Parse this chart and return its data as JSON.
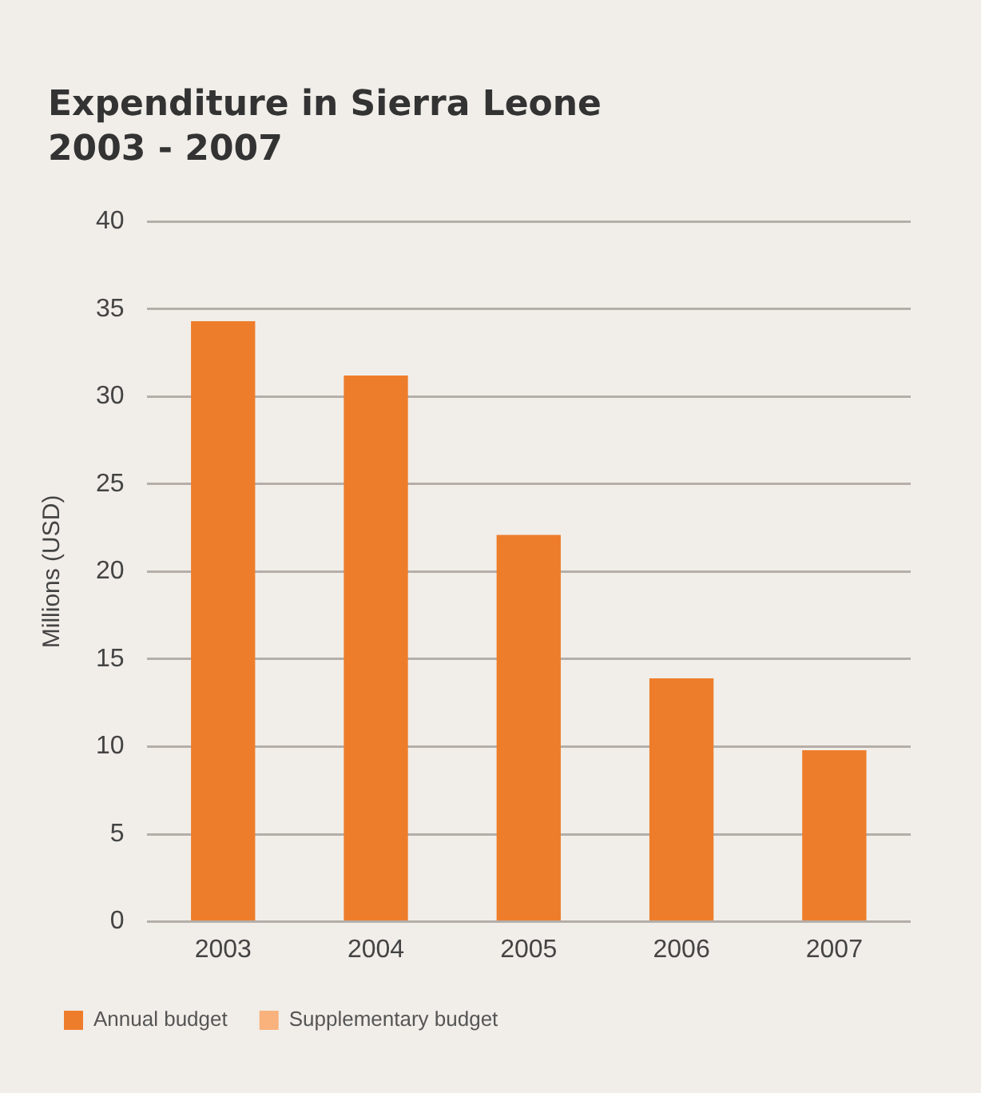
{
  "chart_data": {
    "type": "bar",
    "title": "Expenditure in Sierra Leone\n2003 - 2007",
    "ylabel": "Millions (USD)",
    "categories": [
      "2003",
      "2004",
      "2005",
      "2006",
      "2007"
    ],
    "stacked": true,
    "series": [
      {
        "name": "Annual budget",
        "color": "#ee7d2b",
        "values": [
          34.3,
          31.2,
          22.1,
          13.9,
          9.8
        ]
      },
      {
        "name": "Supplementary budget",
        "color": "#f9b27c",
        "values": [
          null,
          null,
          null,
          null,
          null
        ]
      }
    ],
    "ylim": [
      0,
      40
    ],
    "yticks": [
      0,
      5,
      10,
      15,
      20,
      25,
      30,
      35,
      40
    ],
    "grid": "y",
    "legend": "bottom left"
  }
}
